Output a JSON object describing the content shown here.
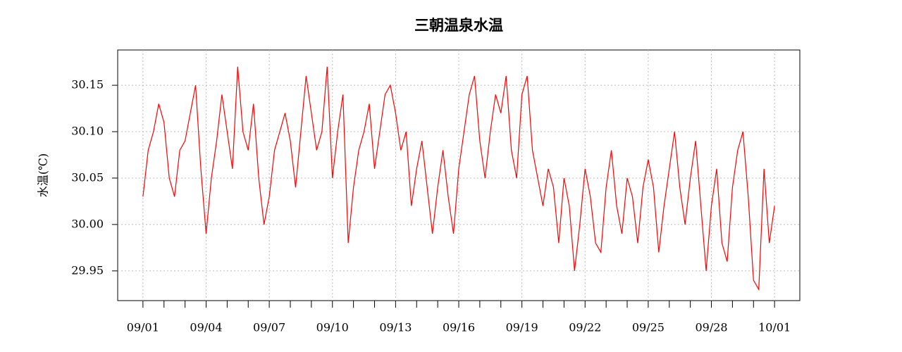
{
  "chart_data": {
    "type": "line",
    "title": "三朝温泉水温",
    "y_label": "水温(℃)",
    "xlim": [
      -1.2,
      31.2
    ],
    "ylim": [
      29.918,
      30.188
    ],
    "xticks": [
      {
        "value": 0,
        "label": "09/01"
      },
      {
        "value": 3,
        "label": "09/04"
      },
      {
        "value": 6,
        "label": "09/07"
      },
      {
        "value": 9,
        "label": "09/10"
      },
      {
        "value": 12,
        "label": "09/13"
      },
      {
        "value": 15,
        "label": "09/16"
      },
      {
        "value": 18,
        "label": "09/19"
      },
      {
        "value": 21,
        "label": "09/22"
      },
      {
        "value": 24,
        "label": "09/25"
      },
      {
        "value": 27,
        "label": "09/28"
      },
      {
        "value": 30,
        "label": "10/01"
      }
    ],
    "xminor_ticks": [
      1,
      2,
      4,
      5,
      7,
      8,
      10,
      11,
      13,
      14,
      16,
      17,
      19,
      20,
      22,
      23,
      25,
      26,
      28,
      29
    ],
    "yticks": [
      29.95,
      {
        "value": 30,
        "label": "30.00"
      },
      30.05,
      {
        "value": 30.1,
        "label": "30.10"
      },
      30.15
    ],
    "grid": true,
    "x": [
      0,
      0.25,
      0.5,
      0.75,
      1,
      1.25,
      1.5,
      1.75,
      2,
      2.25,
      2.5,
      2.75,
      3,
      3.25,
      3.5,
      3.75,
      4,
      4.25,
      4.5,
      4.75,
      5,
      5.25,
      5.5,
      5.75,
      6,
      6.25,
      6.5,
      6.75,
      7,
      7.25,
      7.5,
      7.75,
      8,
      8.25,
      8.5,
      8.75,
      9,
      9.25,
      9.5,
      9.75,
      10,
      10.25,
      10.5,
      10.75,
      11,
      11.25,
      11.5,
      11.75,
      12,
      12.25,
      12.5,
      12.75,
      13,
      13.25,
      13.5,
      13.75,
      14,
      14.25,
      14.5,
      14.75,
      15,
      15.25,
      15.5,
      15.75,
      16,
      16.25,
      16.5,
      16.75,
      17,
      17.25,
      17.5,
      17.75,
      18,
      18.25,
      18.5,
      18.75,
      19,
      19.25,
      19.5,
      19.75,
      20,
      20.25,
      20.5,
      20.75,
      21,
      21.25,
      21.5,
      21.75,
      22,
      22.25,
      22.5,
      22.75,
      23,
      23.25,
      23.5,
      23.75,
      24,
      24.25,
      24.5,
      24.75,
      25,
      25.25,
      25.5,
      25.75,
      26,
      26.25,
      26.5,
      26.75,
      27,
      27.25,
      27.5,
      27.75,
      28,
      28.25,
      28.5,
      28.75,
      29,
      29.25,
      29.5,
      29.75,
      30
    ],
    "series": [
      {
        "name": "水温",
        "color": "#ff0000",
        "values": [
          30.03,
          30.08,
          30.1,
          30.13,
          30.11,
          30.05,
          30.03,
          30.08,
          30.09,
          30.12,
          30.15,
          30.06,
          29.99,
          30.05,
          30.09,
          30.14,
          30.1,
          30.06,
          30.17,
          30.1,
          30.08,
          30.13,
          30.05,
          30.0,
          30.03,
          30.08,
          30.1,
          30.12,
          30.09,
          30.04,
          30.1,
          30.16,
          30.12,
          30.08,
          30.1,
          30.17,
          30.05,
          30.1,
          30.14,
          29.98,
          30.04,
          30.08,
          30.1,
          30.13,
          30.06,
          30.1,
          30.14,
          30.15,
          30.12,
          30.08,
          30.1,
          30.02,
          30.06,
          30.09,
          30.04,
          29.99,
          30.04,
          30.08,
          30.03,
          29.99,
          30.06,
          30.1,
          30.14,
          30.16,
          30.09,
          30.05,
          30.1,
          30.14,
          30.12,
          30.16,
          30.08,
          30.05,
          30.14,
          30.16,
          30.08,
          30.05,
          30.02,
          30.06,
          30.04,
          29.98,
          30.05,
          30.02,
          29.95,
          30.0,
          30.06,
          30.03,
          29.98,
          29.97,
          30.04,
          30.08,
          30.02,
          29.99,
          30.05,
          30.03,
          29.98,
          30.04,
          30.07,
          30.04,
          29.97,
          30.02,
          30.06,
          30.1,
          30.04,
          30.0,
          30.05,
          30.09,
          30.02,
          29.95,
          30.02,
          30.06,
          29.98,
          29.96,
          30.04,
          30.08,
          30.1,
          30.03,
          29.94,
          29.93,
          30.06,
          29.98,
          30.02
        ]
      }
    ]
  }
}
